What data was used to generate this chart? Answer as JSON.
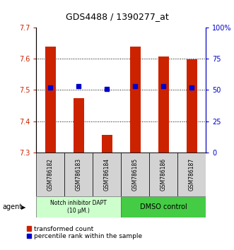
{
  "title": "GDS4488 / 1390277_at",
  "samples": [
    "GSM786182",
    "GSM786183",
    "GSM786184",
    "GSM786185",
    "GSM786186",
    "GSM786187"
  ],
  "transformed_counts": [
    7.638,
    7.474,
    7.356,
    7.638,
    7.608,
    7.598
  ],
  "percentile_ranks": [
    52,
    53,
    51,
    53,
    53,
    52
  ],
  "ylim_left": [
    7.3,
    7.7
  ],
  "ylim_right": [
    0,
    100
  ],
  "yticks_left": [
    7.3,
    7.4,
    7.5,
    7.6,
    7.7
  ],
  "yticks_right": [
    0,
    25,
    50,
    75,
    100
  ],
  "ytick_labels_right": [
    "0",
    "25",
    "50",
    "75",
    "100%"
  ],
  "bar_color": "#cc2200",
  "dot_color": "#0000cc",
  "bar_bottom": 7.3,
  "group1_label": "Notch inhibitor DAPT\n(10 μM.)",
  "group2_label": "DMSO control",
  "group1_color": "#ccffcc",
  "group2_color": "#44cc44",
  "group1_indices": [
    0,
    1,
    2
  ],
  "group2_indices": [
    3,
    4,
    5
  ],
  "legend_bar_label": "transformed count",
  "legend_dot_label": "percentile rank within the sample",
  "agent_label": "agent"
}
